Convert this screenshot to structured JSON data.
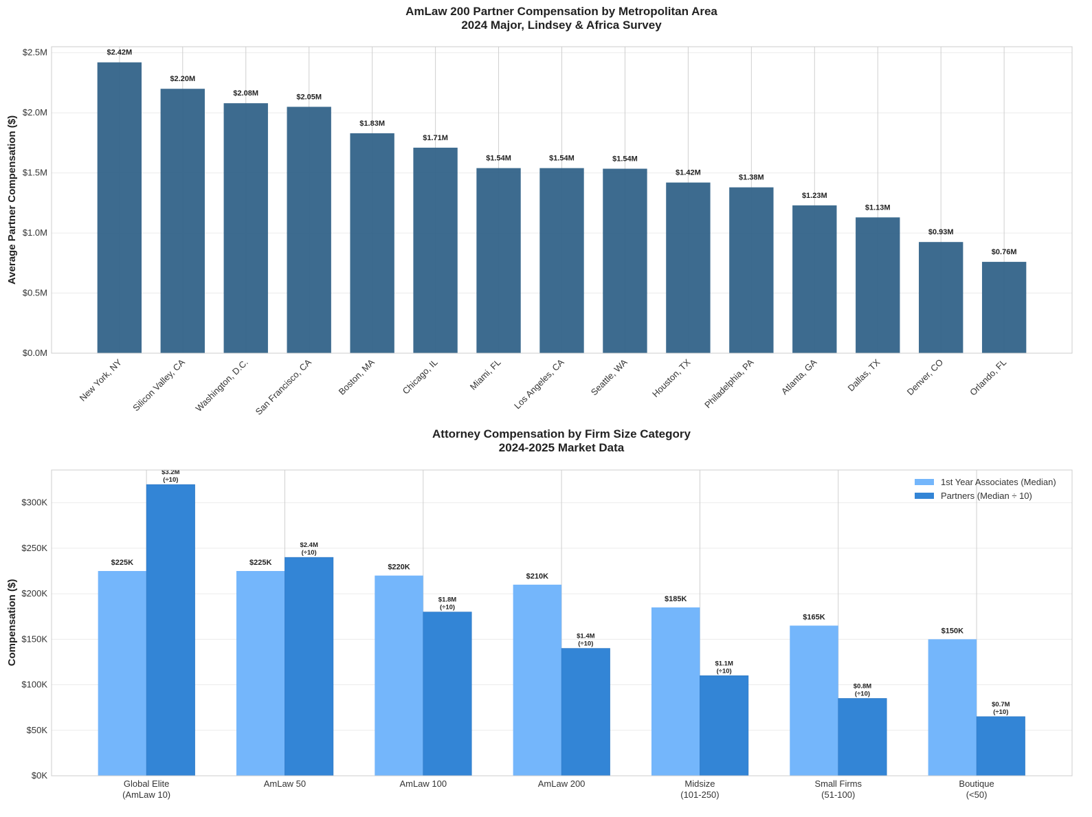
{
  "chart_data": [
    {
      "type": "bar",
      "title": "AmLaw 200 Partner Compensation by Metropolitan Area",
      "subtitle": "2024 Major, Lindsey & Africa Survey",
      "xlabel": "",
      "ylabel": "Average Partner Compensation ($)",
      "ylim": [
        0,
        2.55
      ],
      "yticks": [
        0,
        0.5,
        1.0,
        1.5,
        2.0,
        2.5
      ],
      "ytick_labels": [
        "$0.0M",
        "$0.5M",
        "$1.0M",
        "$1.5M",
        "$2.0M",
        "$2.5M"
      ],
      "grid": true,
      "color": "#336389",
      "categories": [
        "New York, NY",
        "Silicon Valley, CA",
        "Washington, D.C.",
        "San Francisco, CA",
        "Boston, MA",
        "Chicago, IL",
        "Miami, FL",
        "Los Angeles, CA",
        "Seattle, WA",
        "Houston, TX",
        "Philadelphia, PA",
        "Atlanta, GA",
        "Dallas, TX",
        "Denver, CO",
        "Orlando, FL"
      ],
      "values": [
        2.42,
        2.2,
        2.08,
        2.05,
        1.83,
        1.71,
        1.54,
        1.54,
        1.535,
        1.42,
        1.38,
        1.23,
        1.13,
        0.925,
        0.76
      ],
      "data_labels": [
        "$2.42M",
        "$2.20M",
        "$2.08M",
        "$2.05M",
        "$1.83M",
        "$1.71M",
        "$1.54M",
        "$1.54M",
        "$1.54M",
        "$1.42M",
        "$1.38M",
        "$1.23M",
        "$1.13M",
        "$0.93M",
        "$0.76M"
      ]
    },
    {
      "type": "bar",
      "title": "Attorney Compensation by Firm Size Category",
      "subtitle": "2024-2025 Market Data",
      "xlabel": "",
      "ylabel": "Compensation ($)",
      "ylim": [
        0,
        336
      ],
      "yticks": [
        0,
        50,
        100,
        150,
        200,
        250,
        300
      ],
      "ytick_labels": [
        "$0K",
        "$50K",
        "$100K",
        "$150K",
        "$200K",
        "$250K",
        "$300K"
      ],
      "grid": true,
      "legend_placement": "top-right",
      "categories": [
        [
          "Global Elite",
          "(AmLaw 10)"
        ],
        [
          "AmLaw 50"
        ],
        [
          "AmLaw 100"
        ],
        [
          "AmLaw 200"
        ],
        [
          "Midsize",
          "(101-250)"
        ],
        [
          "Small Firms",
          "(51-100)"
        ],
        [
          "Boutique",
          "(<50)"
        ]
      ],
      "series": [
        {
          "name": "1st Year Associates (Median)",
          "color": "#74b6fb",
          "values": [
            225,
            225,
            220,
            210,
            185,
            165,
            150
          ],
          "data_labels": [
            [
              "$225K"
            ],
            [
              "$225K"
            ],
            [
              "$220K"
            ],
            [
              "$210K"
            ],
            [
              "$185K"
            ],
            [
              "$165K"
            ],
            [
              "$150K"
            ]
          ]
        },
        {
          "name": "Partners (Median ÷ 10)",
          "color": "#3385d6",
          "values": [
            320,
            240,
            180,
            140,
            110,
            85,
            65
          ],
          "data_labels": [
            [
              "$3.2M",
              "(÷10)"
            ],
            [
              "$2.4M",
              "(÷10)"
            ],
            [
              "$1.8M",
              "(÷10)"
            ],
            [
              "$1.4M",
              "(÷10)"
            ],
            [
              "$1.1M",
              "(÷10)"
            ],
            [
              "$0.8M",
              "(÷10)"
            ],
            [
              "$0.7M",
              "(÷10)"
            ]
          ]
        }
      ]
    }
  ]
}
